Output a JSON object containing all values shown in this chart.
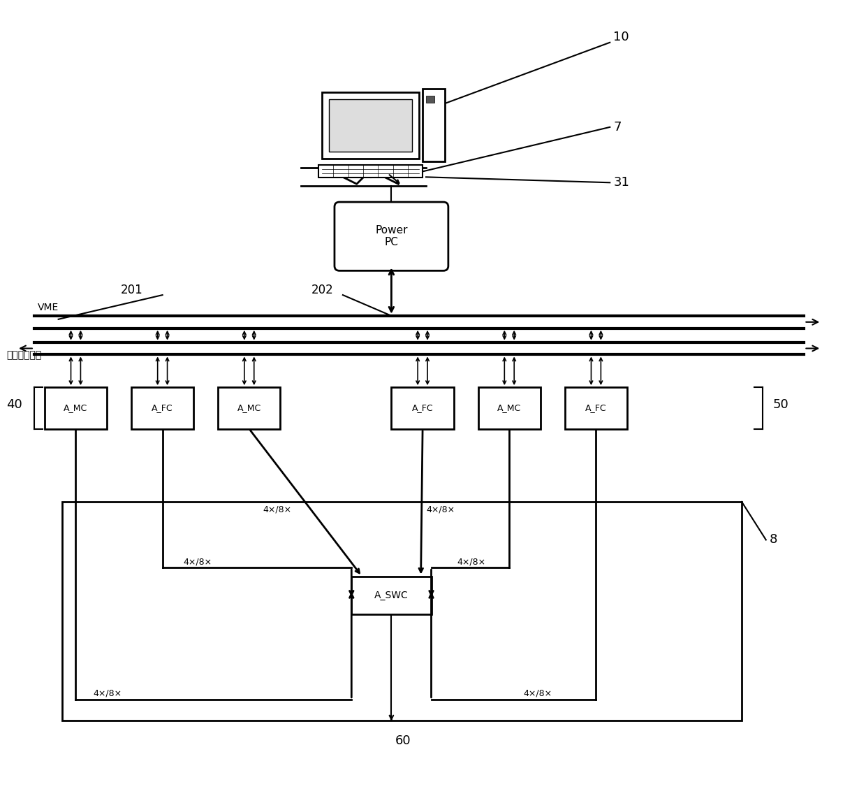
{
  "bg_color": "#ffffff",
  "line_color": "#000000",
  "labels": {
    "num_10": "10",
    "num_7": "7",
    "num_31": "31",
    "num_201": "201",
    "num_202": "202",
    "num_40": "40",
    "num_50": "50",
    "num_8": "8",
    "num_60": "60",
    "vme": "VME",
    "sync": "同步信号总线",
    "powerpc": "Power\nPC",
    "a_swc": "A_SWC",
    "modules": [
      "A_MC",
      "A_FC",
      "A_MC",
      "A_FC",
      "A_MC",
      "A_FC"
    ],
    "bandwidth": "4×/8×"
  },
  "fig_width": 12.4,
  "fig_height": 11.39
}
